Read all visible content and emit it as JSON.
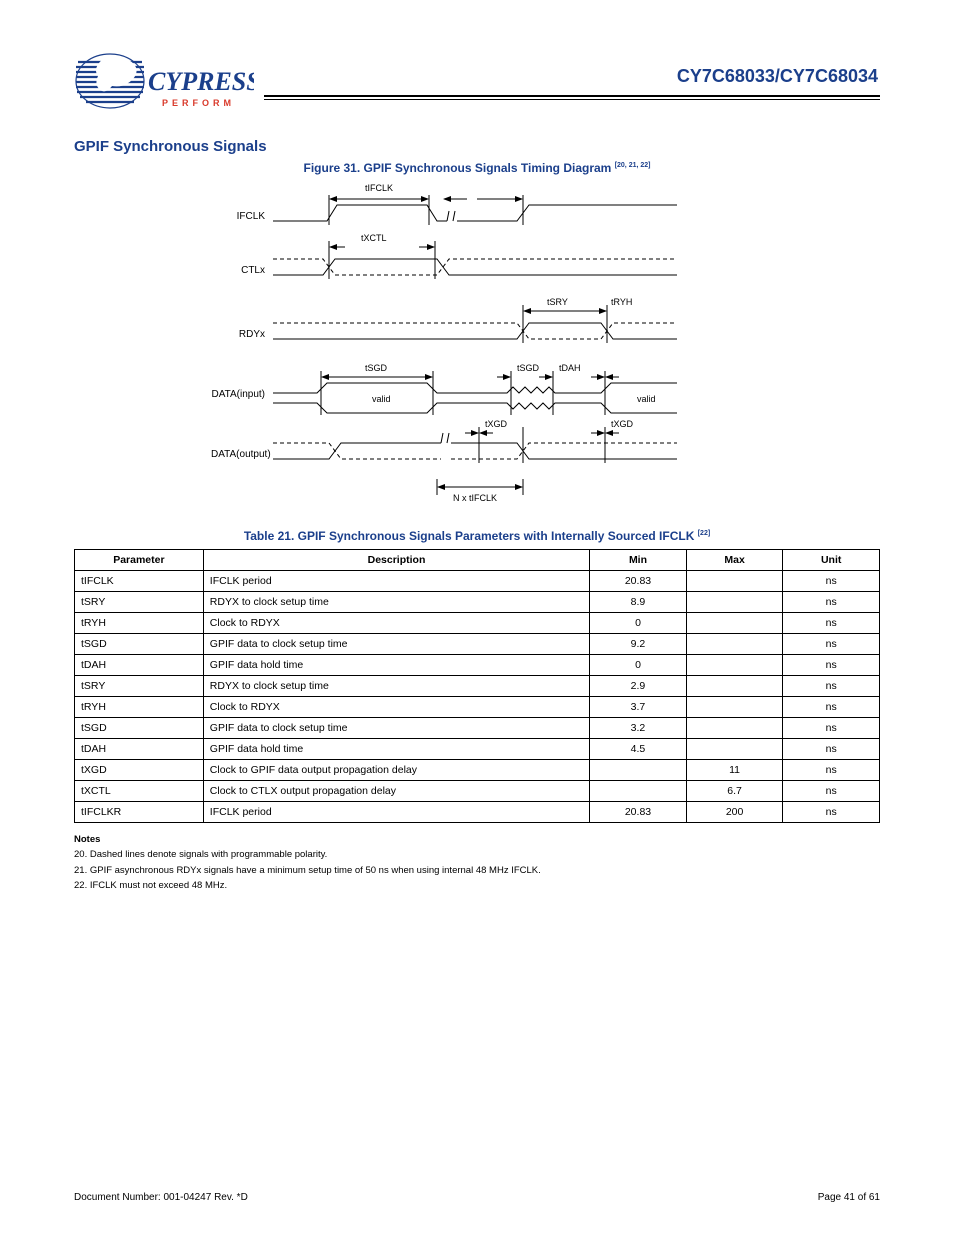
{
  "header": {
    "part_number": "CY7C68033/CY7C68034",
    "logo_text_main": "CYPRESS",
    "logo_text_sub": "P E R F O R M",
    "logo_main_color": "#1b3f8b",
    "logo_sub_color": "#d93a2b"
  },
  "section": {
    "title": "GPIF Synchronous Signals"
  },
  "figure": {
    "caption": "Figure 31. GPIF Synchronous Signals Timing Diagram",
    "signals": [
      "IFCLK",
      "CTLx",
      "RDYx",
      "DATA(input)",
      "DATA(output)"
    ],
    "timing_labels": {
      "top1": "tIFCLK",
      "nonoverlap": "N x tIFCLK",
      "ctl": "tXCTL",
      "sry": "tSRY",
      "ryh": "tRYH",
      "sgd": "tSGD",
      "dah": "tDAH",
      "xgd": "tXGD",
      "gda": "tXGD"
    },
    "colors": {
      "line": "#000000",
      "bg": "#ffffff"
    },
    "line_width": 1
  },
  "tables": {
    "title": "Table 21. GPIF Synchronous Signals Parameters with Internally Sourced IFCLK",
    "columns": [
      "Parameter",
      "Description",
      "Min",
      "Max",
      "Unit"
    ],
    "rows": [
      [
        "tIFCLK",
        "IFCLK period",
        "20.83",
        "",
        "ns"
      ],
      [
        "tSRY",
        "RDYX to clock setup time",
        "8.9",
        "",
        "ns"
      ],
      [
        "tRYH",
        "Clock to RDYX",
        "0",
        "",
        "ns"
      ],
      [
        "tSGD",
        "GPIF data to clock setup time",
        "9.2",
        "",
        "ns"
      ],
      [
        "tDAH",
        "GPIF data hold time",
        "0",
        "",
        "ns"
      ],
      [
        "tSRY",
        "RDYX to clock setup time",
        "2.9",
        "",
        "ns"
      ],
      [
        "tRYH",
        "Clock to RDYX",
        "3.7",
        "",
        "ns"
      ],
      [
        "tSGD",
        "GPIF data to clock setup time",
        "3.2",
        "",
        "ns"
      ],
      [
        "tDAH",
        "GPIF data hold time",
        "4.5",
        "",
        "ns"
      ],
      [
        "tXGD",
        "Clock to GPIF data output propagation delay",
        "",
        "11",
        "ns"
      ],
      [
        "tXCTL",
        "Clock to CTLX output propagation delay",
        "",
        "6.7",
        "ns"
      ],
      [
        "tIFCLKR",
        "IFCLK period",
        "20.83",
        "200",
        "ns"
      ]
    ]
  },
  "footnotes": {
    "label": "Notes",
    "items": [
      "20. Dashed lines denote signals with programmable polarity.",
      "21. GPIF asynchronous RDYx signals have a minimum setup time of 50 ns when using internal 48 MHz IFCLK.",
      "22. IFCLK must not exceed 48 MHz."
    ]
  },
  "footer": {
    "doc": "Document Number: 001-04247 Rev. *D",
    "page": "Page 41 of 61"
  }
}
